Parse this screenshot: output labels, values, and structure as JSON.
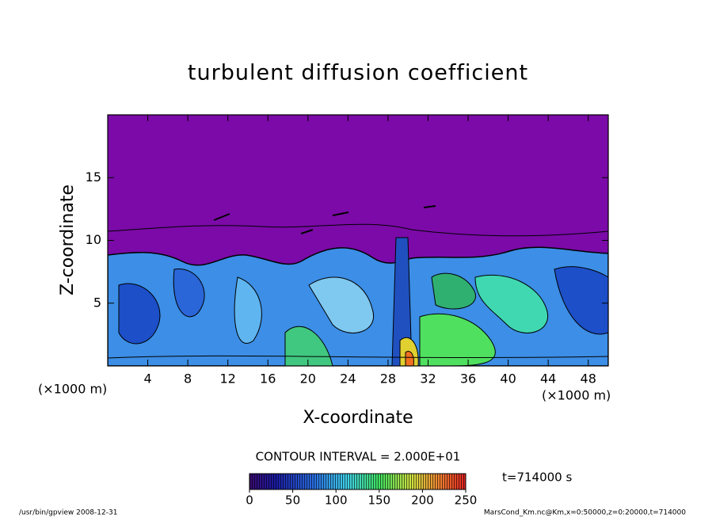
{
  "chart_data": {
    "type": "contour",
    "title": "turbulent diffusion coefficient",
    "xlabel": "X-coordinate",
    "ylabel": "Z-coordinate",
    "x_unit": "(×1000 m)",
    "xlim": [
      0,
      50
    ],
    "ylim": [
      0,
      20
    ],
    "xticks": [
      4,
      8,
      12,
      16,
      20,
      24,
      28,
      32,
      36,
      40,
      44,
      48
    ],
    "yticks": [
      5,
      10,
      15
    ],
    "contour_interval": "CONTOUR INTERVAL = 2.000E+01",
    "colorbar_lim": [
      0,
      250
    ],
    "colorbar_ticks": [
      0,
      50,
      100,
      150,
      200,
      250
    ],
    "time": "t=714000 s",
    "footer_left": "/usr/bin/gpview  2008-12-31",
    "footer_right": "MarsCond_Km.nc@Km,x=0:50000,z=0:20000,t=714000"
  }
}
